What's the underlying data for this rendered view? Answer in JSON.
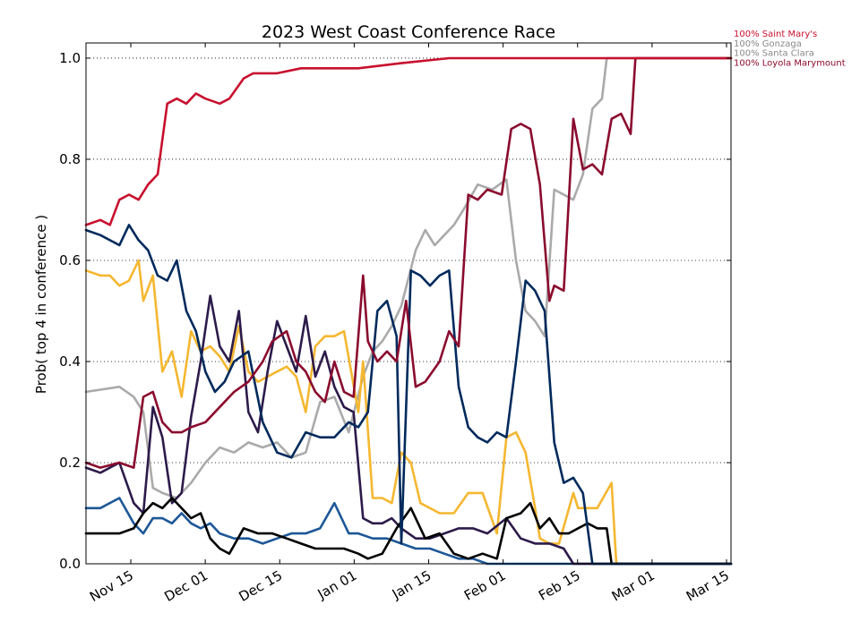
{
  "chart_data": {
    "type": "line",
    "title": "2023 West Coast Conference Race",
    "xlabel": "",
    "ylabel": "Prob( top 4 in conference )",
    "x_ticks": [
      "Nov 15",
      "Dec 01",
      "Dec 15",
      "Jan 01",
      "Jan 15",
      "Feb 01",
      "Feb 15",
      "Mar 01",
      "Mar 15"
    ],
    "y_ticks": [
      "0.0",
      "0.2",
      "0.4",
      "0.6",
      "0.8",
      "1.0"
    ],
    "ylim": [
      0,
      1.03
    ],
    "xlim": [
      "2022-11-05",
      "2023-03-20"
    ],
    "grid": "horizontal dotted",
    "legend_labels": [
      "100% Saint Mary's",
      "100% Gonzaga",
      "100% Santa Clara",
      "100% Loyola Marymount"
    ],
    "series": [
      {
        "color": "#c8102e",
        "x": [
          "2022-11-05",
          "2022-11-08",
          "2022-11-10",
          "2022-11-12",
          "2022-11-14",
          "2022-11-16",
          "2022-11-18",
          "2022-11-20",
          "2022-11-22",
          "2022-11-24",
          "2022-11-26",
          "2022-11-28",
          "2022-11-30",
          "2022-12-03",
          "2022-12-05",
          "2022-12-08",
          "2022-12-10",
          "2022-12-15",
          "2022-12-20",
          "2022-12-25",
          "2023-01-01",
          "2023-01-10",
          "2023-01-20",
          "2023-02-01",
          "2023-03-20"
        ],
        "y": [
          0.67,
          0.68,
          0.67,
          0.72,
          0.73,
          0.72,
          0.75,
          0.77,
          0.91,
          0.92,
          0.91,
          0.93,
          0.92,
          0.91,
          0.92,
          0.96,
          0.97,
          0.97,
          0.98,
          0.98,
          0.98,
          0.99,
          1.0,
          1.0,
          1.0
        ]
      },
      {
        "color": "#aaaaaa",
        "x": [
          "2022-11-05",
          "2022-11-12",
          "2022-11-15",
          "2022-11-17",
          "2022-11-19",
          "2022-11-21",
          "2022-11-24",
          "2022-11-27",
          "2022-11-30",
          "2022-12-03",
          "2022-12-06",
          "2022-12-09",
          "2022-12-12",
          "2022-12-15",
          "2022-12-18",
          "2022-12-21",
          "2022-12-24",
          "2022-12-27",
          "2022-12-30",
          "2023-01-02",
          "2023-01-04",
          "2023-01-06",
          "2023-01-08",
          "2023-01-10",
          "2023-01-13",
          "2023-01-15",
          "2023-01-17",
          "2023-01-19",
          "2023-01-21",
          "2023-01-23",
          "2023-01-26",
          "2023-01-29",
          "2023-02-01",
          "2023-02-03",
          "2023-02-05",
          "2023-02-07",
          "2023-02-09",
          "2023-02-11",
          "2023-02-13",
          "2023-02-15",
          "2023-02-17",
          "2023-02-19",
          "2023-02-21",
          "2023-02-22",
          "2023-03-20"
        ],
        "y": [
          0.34,
          0.35,
          0.33,
          0.3,
          0.15,
          0.14,
          0.13,
          0.16,
          0.2,
          0.23,
          0.22,
          0.24,
          0.23,
          0.24,
          0.21,
          0.22,
          0.32,
          0.33,
          0.26,
          0.37,
          0.42,
          0.44,
          0.47,
          0.51,
          0.62,
          0.66,
          0.63,
          0.65,
          0.67,
          0.7,
          0.75,
          0.74,
          0.76,
          0.6,
          0.5,
          0.48,
          0.45,
          0.74,
          0.73,
          0.72,
          0.77,
          0.9,
          0.92,
          1.0,
          1.0
        ]
      },
      {
        "color": "#8a0b2e",
        "x": [
          "2022-11-05",
          "2022-11-08",
          "2022-11-12",
          "2022-11-15",
          "2022-11-17",
          "2022-11-19",
          "2022-11-21",
          "2022-11-23",
          "2022-11-25",
          "2022-11-27",
          "2022-11-30",
          "2022-12-03",
          "2022-12-06",
          "2022-12-09",
          "2022-12-12",
          "2022-12-14",
          "2022-12-17",
          "2022-12-19",
          "2022-12-21",
          "2022-12-23",
          "2022-12-25",
          "2022-12-27",
          "2022-12-29",
          "2022-12-31",
          "2023-01-02",
          "2023-01-03",
          "2023-01-05",
          "2023-01-07",
          "2023-01-09",
          "2023-01-11",
          "2023-01-13",
          "2023-01-15",
          "2023-01-18",
          "2023-01-20",
          "2023-01-22",
          "2023-01-24",
          "2023-01-26",
          "2023-01-28",
          "2023-01-31",
          "2023-02-02",
          "2023-02-04",
          "2023-02-06",
          "2023-02-08",
          "2023-02-10",
          "2023-02-11",
          "2023-02-13",
          "2023-02-15",
          "2023-02-17",
          "2023-02-19",
          "2023-02-21",
          "2023-02-23",
          "2023-02-25",
          "2023-02-27",
          "2023-02-28",
          "2023-03-20"
        ],
        "y": [
          0.2,
          0.19,
          0.2,
          0.19,
          0.33,
          0.34,
          0.28,
          0.26,
          0.26,
          0.27,
          0.28,
          0.31,
          0.34,
          0.36,
          0.4,
          0.44,
          0.46,
          0.4,
          0.38,
          0.34,
          0.32,
          0.4,
          0.34,
          0.33,
          0.57,
          0.44,
          0.4,
          0.42,
          0.4,
          0.52,
          0.35,
          0.36,
          0.4,
          0.46,
          0.43,
          0.73,
          0.72,
          0.74,
          0.73,
          0.86,
          0.87,
          0.86,
          0.75,
          0.52,
          0.55,
          0.54,
          0.88,
          0.78,
          0.79,
          0.77,
          0.88,
          0.89,
          0.85,
          1.0,
          1.0
        ]
      },
      {
        "color": "#f5b731",
        "x": [
          "2022-11-05",
          "2022-11-08",
          "2022-11-10",
          "2022-11-12",
          "2022-11-14",
          "2022-11-16",
          "2022-11-17",
          "2022-11-19",
          "2022-11-21",
          "2022-11-23",
          "2022-11-25",
          "2022-11-27",
          "2022-11-29",
          "2022-12-01",
          "2022-12-03",
          "2022-12-05",
          "2022-12-07",
          "2022-12-09",
          "2022-12-11",
          "2022-12-13",
          "2022-12-15",
          "2022-12-17",
          "2022-12-19",
          "2022-12-21",
          "2022-12-23",
          "2022-12-25",
          "2022-12-27",
          "2022-12-29",
          "2023-01-01",
          "2023-01-02",
          "2023-01-04",
          "2023-01-06",
          "2023-01-08",
          "2023-01-10",
          "2023-01-12",
          "2023-01-14",
          "2023-01-16",
          "2023-01-18",
          "2023-01-21",
          "2023-01-24",
          "2023-01-27",
          "2023-01-30",
          "2023-02-01",
          "2023-02-03",
          "2023-02-05",
          "2023-02-07",
          "2023-02-08",
          "2023-02-10",
          "2023-02-12",
          "2023-02-15",
          "2023-02-16",
          "2023-02-18",
          "2023-02-20",
          "2023-02-23",
          "2023-02-24",
          "2023-02-25",
          "2023-03-20"
        ],
        "y": [
          0.58,
          0.57,
          0.57,
          0.55,
          0.56,
          0.6,
          0.52,
          0.57,
          0.38,
          0.42,
          0.33,
          0.46,
          0.42,
          0.43,
          0.41,
          0.38,
          0.47,
          0.38,
          0.36,
          0.37,
          0.38,
          0.39,
          0.37,
          0.3,
          0.43,
          0.45,
          0.45,
          0.46,
          0.3,
          0.4,
          0.13,
          0.13,
          0.12,
          0.22,
          0.2,
          0.12,
          0.11,
          0.1,
          0.1,
          0.14,
          0.14,
          0.06,
          0.25,
          0.26,
          0.22,
          0.11,
          0.05,
          0.04,
          0.04,
          0.14,
          0.11,
          0.11,
          0.11,
          0.16,
          0.0,
          0.0,
          0.0
        ]
      },
      {
        "color": "#002a5c",
        "x": [
          "2022-11-05",
          "2022-11-08",
          "2022-11-12",
          "2022-11-14",
          "2022-11-16",
          "2022-11-18",
          "2022-11-20",
          "2022-11-22",
          "2022-11-24",
          "2022-11-26",
          "2022-11-28",
          "2022-11-30",
          "2022-12-02",
          "2022-12-04",
          "2022-12-06",
          "2022-12-09",
          "2022-12-12",
          "2022-12-15",
          "2022-12-18",
          "2022-12-21",
          "2022-12-24",
          "2022-12-27",
          "2022-12-30",
          "2023-01-01",
          "2023-01-03",
          "2023-01-05",
          "2023-01-07",
          "2023-01-09",
          "2023-01-10",
          "2023-01-12",
          "2023-01-14",
          "2023-01-16",
          "2023-01-18",
          "2023-01-20",
          "2023-01-22",
          "2023-01-24",
          "2023-01-26",
          "2023-01-28",
          "2023-01-30",
          "2023-02-01",
          "2023-02-03",
          "2023-02-05",
          "2023-02-07",
          "2023-02-09",
          "2023-02-11",
          "2023-02-13",
          "2023-02-15",
          "2023-02-17",
          "2023-02-19",
          "2023-02-20",
          "2023-03-20"
        ],
        "y": [
          0.66,
          0.65,
          0.63,
          0.67,
          0.64,
          0.62,
          0.57,
          0.56,
          0.6,
          0.5,
          0.46,
          0.38,
          0.34,
          0.36,
          0.4,
          0.42,
          0.28,
          0.22,
          0.21,
          0.26,
          0.25,
          0.25,
          0.28,
          0.27,
          0.3,
          0.5,
          0.52,
          0.45,
          0.04,
          0.58,
          0.57,
          0.55,
          0.57,
          0.58,
          0.35,
          0.27,
          0.25,
          0.24,
          0.26,
          0.25,
          0.4,
          0.56,
          0.54,
          0.5,
          0.24,
          0.16,
          0.17,
          0.14,
          0.0,
          0.0,
          0.0
        ]
      },
      {
        "color": "#2c1b4a",
        "x": [
          "2022-11-05",
          "2022-11-08",
          "2022-11-12",
          "2022-11-15",
          "2022-11-17",
          "2022-11-19",
          "2022-11-21",
          "2022-11-23",
          "2022-11-25",
          "2022-11-27",
          "2022-11-29",
          "2022-12-01",
          "2022-12-03",
          "2022-12-05",
          "2022-12-07",
          "2022-12-09",
          "2022-12-11",
          "2022-12-13",
          "2022-12-15",
          "2022-12-17",
          "2022-12-19",
          "2022-12-21",
          "2022-12-23",
          "2022-12-25",
          "2022-12-27",
          "2022-12-29",
          "2022-12-31",
          "2023-01-02",
          "2023-01-04",
          "2023-01-06",
          "2023-01-08",
          "2023-01-10",
          "2023-01-13",
          "2023-01-16",
          "2023-01-19",
          "2023-01-22",
          "2023-01-25",
          "2023-01-28",
          "2023-02-01",
          "2023-02-04",
          "2023-02-07",
          "2023-02-10",
          "2023-02-13",
          "2023-02-15",
          "2023-03-20"
        ],
        "y": [
          0.19,
          0.18,
          0.2,
          0.12,
          0.1,
          0.31,
          0.25,
          0.12,
          0.14,
          0.29,
          0.4,
          0.53,
          0.43,
          0.4,
          0.5,
          0.3,
          0.26,
          0.38,
          0.48,
          0.43,
          0.38,
          0.49,
          0.37,
          0.42,
          0.35,
          0.31,
          0.3,
          0.09,
          0.08,
          0.08,
          0.09,
          0.07,
          0.05,
          0.05,
          0.06,
          0.07,
          0.07,
          0.06,
          0.09,
          0.05,
          0.04,
          0.04,
          0.03,
          0.0,
          0.0
        ]
      },
      {
        "color": "#1d5796",
        "x": [
          "2022-11-05",
          "2022-11-08",
          "2022-11-12",
          "2022-11-15",
          "2022-11-17",
          "2022-11-19",
          "2022-11-21",
          "2022-11-23",
          "2022-11-25",
          "2022-11-27",
          "2022-11-29",
          "2022-12-01",
          "2022-12-03",
          "2022-12-06",
          "2022-12-09",
          "2022-12-12",
          "2022-12-15",
          "2022-12-18",
          "2022-12-21",
          "2022-12-24",
          "2022-12-27",
          "2022-12-30",
          "2023-01-01",
          "2023-01-04",
          "2023-01-07",
          "2023-01-10",
          "2023-01-13",
          "2023-01-16",
          "2023-01-19",
          "2023-01-22",
          "2023-01-25",
          "2023-01-28",
          "2023-02-01",
          "2023-03-20"
        ],
        "y": [
          0.11,
          0.11,
          0.13,
          0.08,
          0.06,
          0.09,
          0.09,
          0.08,
          0.1,
          0.08,
          0.07,
          0.08,
          0.06,
          0.05,
          0.05,
          0.04,
          0.05,
          0.06,
          0.06,
          0.07,
          0.12,
          0.06,
          0.06,
          0.05,
          0.05,
          0.04,
          0.03,
          0.03,
          0.02,
          0.01,
          0.01,
          0.0,
          0.0,
          0.0
        ]
      },
      {
        "color": "#000000",
        "x": [
          "2022-11-05",
          "2022-11-08",
          "2022-11-12",
          "2022-11-15",
          "2022-11-17",
          "2022-11-19",
          "2022-11-21",
          "2022-11-23",
          "2022-11-25",
          "2022-11-27",
          "2022-11-29",
          "2022-12-01",
          "2022-12-03",
          "2022-12-05",
          "2022-12-08",
          "2022-12-11",
          "2022-12-14",
          "2022-12-17",
          "2022-12-20",
          "2022-12-23",
          "2022-12-26",
          "2022-12-29",
          "2023-01-01",
          "2023-01-03",
          "2023-01-06",
          "2023-01-09",
          "2023-01-12",
          "2023-01-15",
          "2023-01-18",
          "2023-01-21",
          "2023-01-24",
          "2023-01-27",
          "2023-01-30",
          "2023-02-01",
          "2023-02-04",
          "2023-02-06",
          "2023-02-08",
          "2023-02-10",
          "2023-02-12",
          "2023-02-14",
          "2023-02-16",
          "2023-02-18",
          "2023-02-20",
          "2023-02-22",
          "2023-02-23",
          "2023-03-20"
        ],
        "y": [
          0.06,
          0.06,
          0.06,
          0.07,
          0.1,
          0.12,
          0.11,
          0.13,
          0.11,
          0.09,
          0.1,
          0.05,
          0.03,
          0.02,
          0.07,
          0.06,
          0.06,
          0.05,
          0.04,
          0.03,
          0.03,
          0.03,
          0.02,
          0.01,
          0.02,
          0.07,
          0.11,
          0.05,
          0.06,
          0.02,
          0.01,
          0.02,
          0.01,
          0.09,
          0.1,
          0.12,
          0.07,
          0.09,
          0.06,
          0.06,
          0.07,
          0.08,
          0.07,
          0.07,
          0.0,
          0.0
        ]
      }
    ]
  }
}
